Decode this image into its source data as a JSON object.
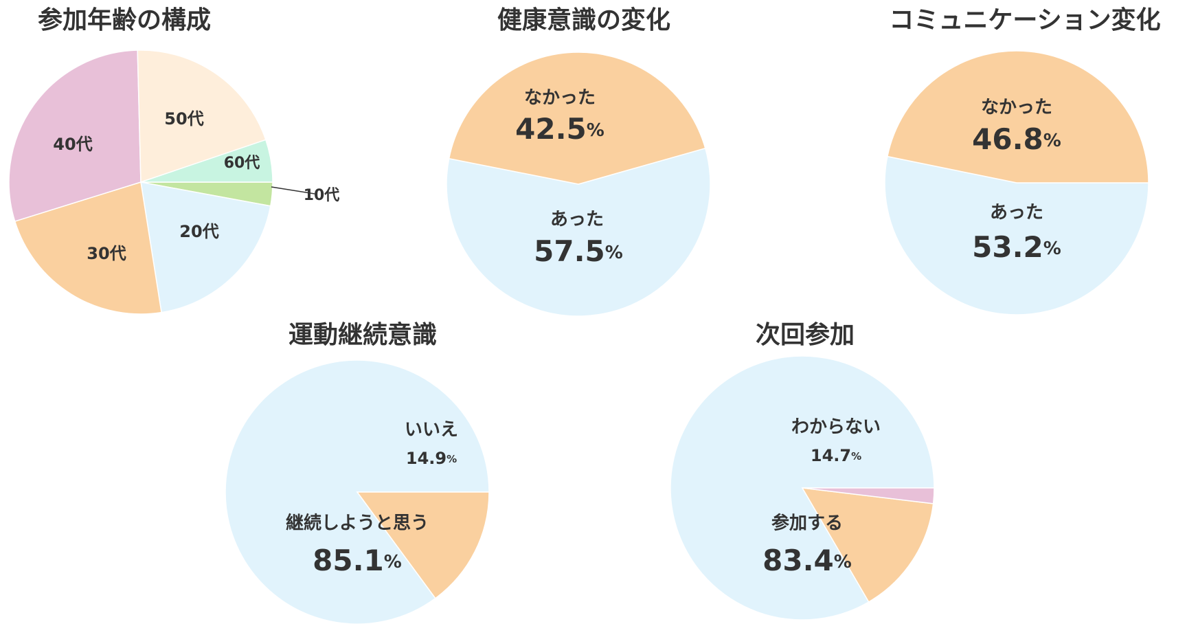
{
  "colors": {
    "pink": "#e8c0d8",
    "cream": "#feeedb",
    "mint": "#c8f4e1",
    "lime": "#c3e5a0",
    "lightblue": "#e1f3fc",
    "peach": "#fad09f",
    "text": "#333333"
  },
  "chart_data": [
    {
      "type": "pie",
      "title": "参加年齢の構成",
      "slices": [
        {
          "label": "10代",
          "value": 2.9,
          "color": "#c3e5a0"
        },
        {
          "label": "20代",
          "value": 19.6,
          "color": "#e1f3fc"
        },
        {
          "label": "30代",
          "value": 22.7,
          "color": "#fad09f"
        },
        {
          "label": "40代",
          "value": 29.4,
          "color": "#e8c0d8"
        },
        {
          "label": "50代",
          "value": 20.2,
          "color": "#feeedb"
        },
        {
          "label": "60代",
          "value": 5.2,
          "color": "#c8f4e1"
        }
      ]
    },
    {
      "type": "pie",
      "title": "健康意識の変化",
      "slices": [
        {
          "label": "あった",
          "value": 57.5,
          "value_text": "57.5",
          "color": "#e1f3fc"
        },
        {
          "label": "なかった",
          "value": 42.5,
          "value_text": "42.5",
          "color": "#fad09f"
        }
      ]
    },
    {
      "type": "pie",
      "title": "コミュニケーション変化",
      "slices": [
        {
          "label": "あった",
          "value": 53.2,
          "value_text": "53.2",
          "color": "#e1f3fc"
        },
        {
          "label": "なかった",
          "value": 46.8,
          "value_text": "46.8",
          "color": "#fad09f"
        }
      ]
    },
    {
      "type": "pie",
      "title": "運動継続意識",
      "slices": [
        {
          "label": "継続しようと思う",
          "value": 85.1,
          "value_text": "85.1",
          "color": "#e1f3fc"
        },
        {
          "label": "いいえ",
          "value": 14.9,
          "value_text": "14.9",
          "color": "#fad09f"
        }
      ]
    },
    {
      "type": "pie",
      "title": "次回参加",
      "slices": [
        {
          "label": "参加する",
          "value": 83.4,
          "value_text": "83.4",
          "color": "#e1f3fc"
        },
        {
          "label": "わからない",
          "value": 14.7,
          "value_text": "14.7",
          "color": "#fad09f"
        },
        {
          "label": "",
          "value": 1.9,
          "color": "#e8c0d8"
        }
      ]
    }
  ],
  "percent_sign": "%"
}
